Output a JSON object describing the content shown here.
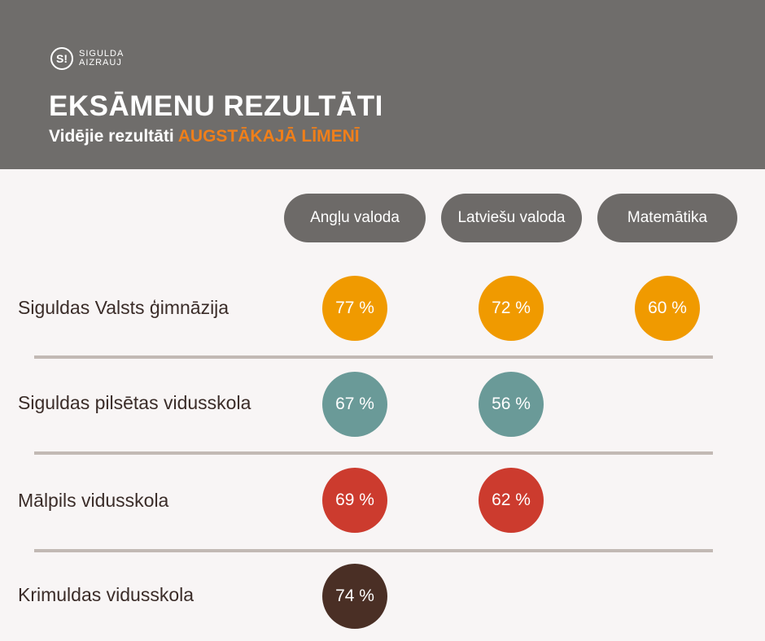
{
  "header": {
    "logo_mark": "S!",
    "logo_line1": "SIGULDA",
    "logo_line2": "AIZRAUJ",
    "title": "EKSĀMENU REZULTĀTI",
    "subtitle_prefix": "Vidējie rezultāti ",
    "subtitle_accent": "AUGSTĀKAJĀ LĪMENĪ"
  },
  "columns": [
    "Angļu valoda",
    "Latviešu valoda",
    "Matemātika"
  ],
  "rows": [
    {
      "school": "Siguldas Valsts ģimnāzija",
      "results": [
        "77 %",
        "72 %",
        "60 %"
      ],
      "color": "#f09a00"
    },
    {
      "school": "Siguldas pilsētas vidusskola",
      "results": [
        "67 %",
        "56 %"
      ],
      "color": "#6a9a98"
    },
    {
      "school": "Mālpils vidusskola",
      "results": [
        "69 %",
        "62 %"
      ],
      "color": "#cc3b2e"
    },
    {
      "school": "Krimuldas vidusskola",
      "results": [
        "74 %"
      ],
      "color": "#4a2f25"
    }
  ]
}
